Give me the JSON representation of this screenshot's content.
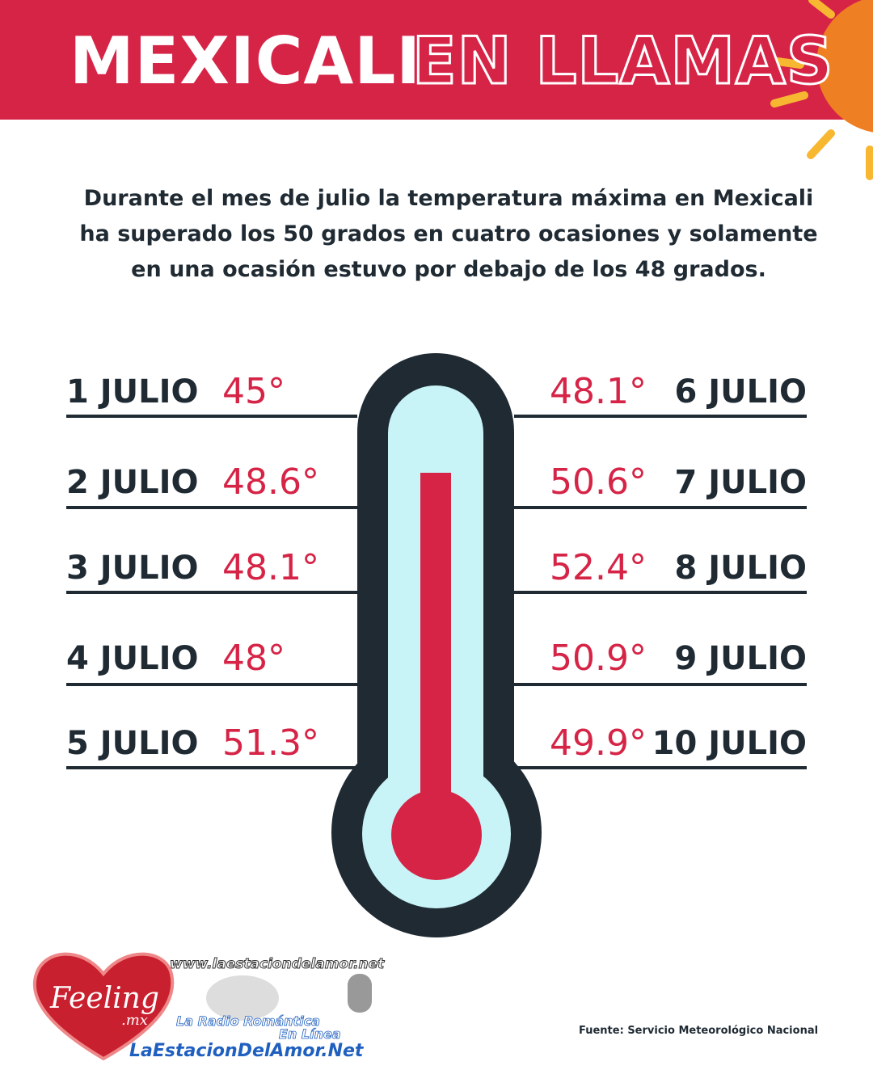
{
  "header": {
    "title_bold": "MEXICALI",
    "title_outline": "EN LLAMAS"
  },
  "intro": "Durante el mes de julio la temperatura máxima en Mexicali ha superado los 50 grados en cuatro ocasiones y solamente en una ocasión estuvo por debajo de los 48 grados.",
  "left": [
    {
      "date": "1 JULIO",
      "temp": "45°"
    },
    {
      "date": "2 JULIO",
      "temp": "48.6°"
    },
    {
      "date": "3 JULIO",
      "temp": "48.1°"
    },
    {
      "date": "4 JULIO",
      "temp": "48°"
    },
    {
      "date": "5 JULIO",
      "temp": "51.3°"
    }
  ],
  "right": [
    {
      "date": "6 JULIO",
      "temp": "48.1°"
    },
    {
      "date": "7 JULIO",
      "temp": "50.6°"
    },
    {
      "date": "8 JULIO",
      "temp": "52.4°"
    },
    {
      "date": "9 JULIO",
      "temp": "50.9°"
    },
    {
      "date": "10 JULIO",
      "temp": "49.9°"
    }
  ],
  "logo": {
    "url": "www.laestaciondelamor.net",
    "brand": "Feeling",
    "brand_suffix": ".mx",
    "tagline1": "La Radio Romántica",
    "tagline2": "En Línea",
    "site": "LaEstacionDelAmor.Net"
  },
  "source": "Fuente: Servicio Meteorológico Nacional"
}
